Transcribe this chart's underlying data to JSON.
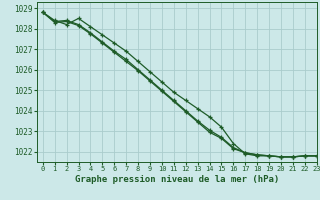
{
  "title": "Graphe pression niveau de la mer (hPa)",
  "xlim": [
    -0.5,
    23
  ],
  "ylim": [
    1021.5,
    1029.3
  ],
  "yticks": [
    1022,
    1023,
    1024,
    1025,
    1026,
    1027,
    1028,
    1029
  ],
  "xticks": [
    0,
    1,
    2,
    3,
    4,
    5,
    6,
    7,
    8,
    9,
    10,
    11,
    12,
    13,
    14,
    15,
    16,
    17,
    18,
    19,
    20,
    21,
    22,
    23
  ],
  "bg_color": "#cce8e8",
  "grid_color": "#aacccc",
  "line_color": "#1e5c28",
  "series1": [
    1028.8,
    1028.4,
    1028.2,
    1028.5,
    1028.1,
    1027.7,
    1027.3,
    1026.9,
    1026.4,
    1025.9,
    1025.4,
    1024.9,
    1024.5,
    1024.1,
    1023.7,
    1023.2,
    1022.4,
    1021.9,
    1021.8,
    1021.8,
    1021.75,
    1021.75,
    1021.8,
    1021.8
  ],
  "series2": [
    1028.8,
    1028.35,
    1028.4,
    1028.2,
    1027.8,
    1027.35,
    1026.9,
    1026.5,
    1026.0,
    1025.5,
    1025.0,
    1024.5,
    1024.0,
    1023.5,
    1023.05,
    1022.7,
    1022.2,
    1021.95,
    1021.85,
    1021.8,
    1021.75,
    1021.75,
    1021.8,
    1021.8
  ],
  "series3": [
    1028.8,
    1028.3,
    1028.35,
    1028.15,
    1027.75,
    1027.3,
    1026.85,
    1026.4,
    1025.95,
    1025.45,
    1024.95,
    1024.45,
    1023.95,
    1023.45,
    1022.95,
    1022.65,
    1022.15,
    1021.95,
    1021.85,
    1021.8,
    1021.75,
    1021.75,
    1021.8,
    1021.8
  ],
  "ylabel_fontsize": 5.5,
  "xlabel_fontsize": 5.2,
  "title_fontsize": 6.5,
  "lw": 0.9,
  "ms": 2.8
}
